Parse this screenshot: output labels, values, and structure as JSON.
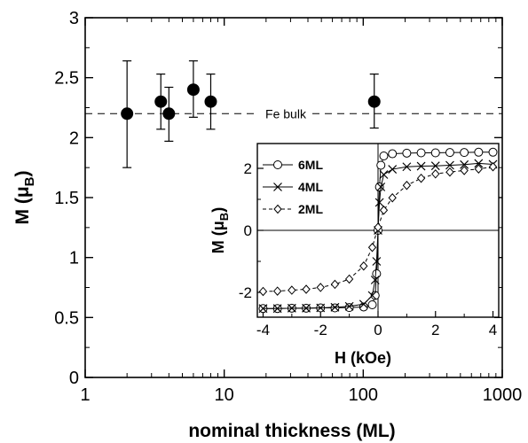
{
  "chart_data": [
    {
      "type": "scatter",
      "xlabel": "nominal thickness (ML)",
      "ylabel": "M (μB)",
      "ylabel_main": "M (μ",
      "ylabel_sub": "B",
      "ylabel_close": ")",
      "xscale": "log",
      "xlim": [
        1,
        1000
      ],
      "ylim": [
        0,
        3
      ],
      "xticks": [
        "1",
        "10",
        "100",
        "1000"
      ],
      "yticks": [
        "0",
        "0.5",
        "1",
        "1.5",
        "2",
        "2.5",
        "3"
      ],
      "points": [
        {
          "x": 2,
          "y": 2.2,
          "err_lo": 1.75,
          "err_hi": 2.64
        },
        {
          "x": 3.5,
          "y": 2.3,
          "err_lo": 2.07,
          "err_hi": 2.53
        },
        {
          "x": 4,
          "y": 2.2,
          "err_lo": 1.97,
          "err_hi": 2.42
        },
        {
          "x": 6,
          "y": 2.4,
          "err_lo": 2.17,
          "err_hi": 2.64
        },
        {
          "x": 8,
          "y": 2.3,
          "err_lo": 2.07,
          "err_hi": 2.53
        },
        {
          "x": 120,
          "y": 2.3,
          "err_lo": 2.08,
          "err_hi": 2.53
        }
      ],
      "reference_line": {
        "y": 2.2,
        "label": "Fe bulk"
      }
    },
    {
      "type": "line",
      "inset": true,
      "xlabel": "H (kOe)",
      "ylabel": "M (μB)",
      "ylabel_main": "M (μ",
      "ylabel_sub": "B",
      "ylabel_close": ")",
      "xlim": [
        -4.2,
        4.2
      ],
      "ylim": [
        -2.8,
        2.8
      ],
      "xticks": [
        "-4",
        "-2",
        "0",
        "2",
        "4"
      ],
      "yticks": [
        "-2",
        "0",
        "2"
      ],
      "legend_position": "top-left",
      "series": [
        {
          "name": "6ML",
          "marker": "circle",
          "line": "solid",
          "x": [
            -4.0,
            -3.5,
            -3.0,
            -2.5,
            -2.0,
            -1.5,
            -1.0,
            -0.5,
            -0.2,
            -0.1,
            -0.05,
            0.0,
            0.05,
            0.1,
            0.2,
            0.5,
            1.0,
            1.5,
            2.0,
            2.5,
            3.0,
            3.5,
            4.0
          ],
          "y": [
            -2.52,
            -2.52,
            -2.51,
            -2.51,
            -2.5,
            -2.5,
            -2.49,
            -2.47,
            -2.4,
            -2.1,
            -1.4,
            0.0,
            1.4,
            2.1,
            2.4,
            2.47,
            2.49,
            2.5,
            2.5,
            2.51,
            2.51,
            2.52,
            2.52
          ]
        },
        {
          "name": "4ML",
          "marker": "x",
          "line": "solid",
          "x": [
            -4.0,
            -3.5,
            -3.0,
            -2.5,
            -2.0,
            -1.5,
            -1.0,
            -0.5,
            -0.2,
            -0.1,
            -0.05,
            0.0,
            0.05,
            0.1,
            0.2,
            0.5,
            1.0,
            1.5,
            2.0,
            2.5,
            3.0,
            3.5,
            4.0
          ],
          "y": [
            -2.52,
            -2.52,
            -2.51,
            -2.51,
            -2.5,
            -2.48,
            -2.45,
            -2.38,
            -2.1,
            -1.6,
            -1.0,
            0.0,
            0.9,
            1.4,
            1.8,
            1.97,
            2.05,
            2.07,
            2.08,
            2.1,
            2.12,
            2.16,
            2.13
          ]
        },
        {
          "name": "2ML",
          "marker": "diamond",
          "line": "dashed",
          "x": [
            -4.0,
            -3.5,
            -3.0,
            -2.5,
            -2.0,
            -1.5,
            -1.0,
            -0.5,
            -0.2,
            0.0,
            0.2,
            0.5,
            1.0,
            1.5,
            2.0,
            2.5,
            3.0,
            3.5,
            4.0
          ],
          "y": [
            -1.97,
            -1.96,
            -1.93,
            -1.9,
            -1.84,
            -1.74,
            -1.57,
            -1.15,
            -0.55,
            0.1,
            0.65,
            1.05,
            1.45,
            1.68,
            1.82,
            1.88,
            1.93,
            1.98,
            2.05
          ]
        }
      ]
    }
  ]
}
